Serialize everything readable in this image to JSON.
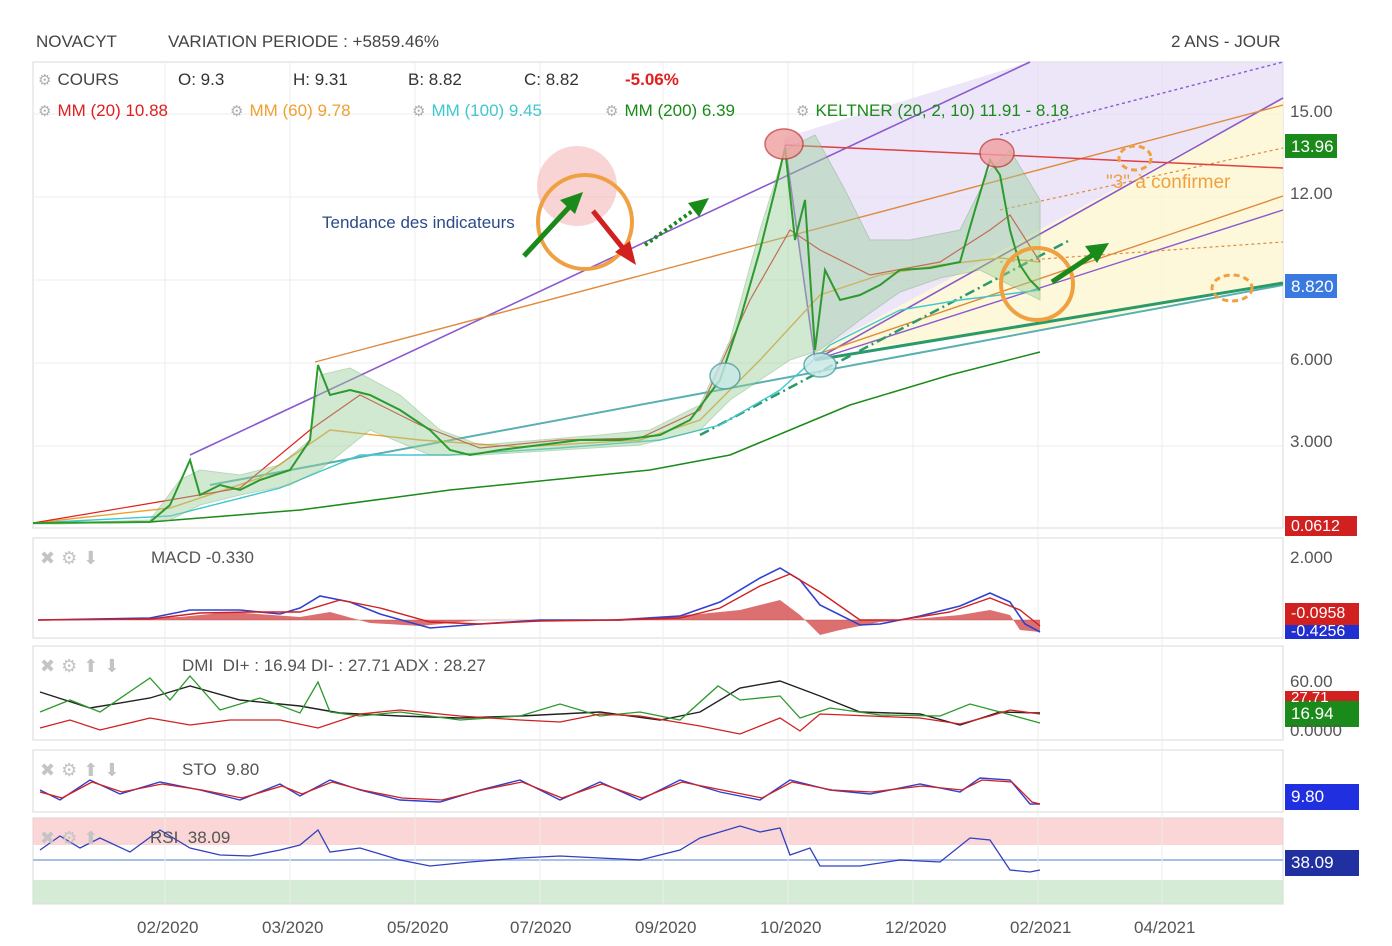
{
  "header": {
    "ticker": "NOVACYT",
    "variation": "VARIATION PERIODE : +5859.46%",
    "period": "2 ANS - JOUR"
  },
  "quote": {
    "label": "COURS",
    "open": "O: 9.3",
    "high": "H: 9.31",
    "low": "B: 8.82",
    "close": "C: 8.82",
    "change": "-5.06%"
  },
  "moving_averages": [
    {
      "label": "MM (20)",
      "value": "10.88",
      "color": "#e02020"
    },
    {
      "label": "MM (60)",
      "value": "9.78",
      "color": "#f0a030"
    },
    {
      "label": "MM (100)",
      "value": "9.45",
      "color": "#40c8d0"
    },
    {
      "label": "MM (200)",
      "value": "6.39",
      "color": "#1a8a1a"
    },
    {
      "label": "KELTNER (20, 2, 10)",
      "value": "11.91 - 8.18",
      "color": "#1a8a1a"
    }
  ],
  "price_axis": {
    "ticks": [
      "15.00",
      "12.00",
      "6.000",
      "3.000"
    ],
    "tags": [
      {
        "text": "13.96",
        "color": "#1a8a1a"
      },
      {
        "text": "8.820",
        "color": "#3a7ae0"
      },
      {
        "text": "0.0612",
        "color": "#d02020"
      }
    ]
  },
  "annotations": {
    "trend_text": "Tendance des indicateurs",
    "confirm_text": "\"3\" à confirmer"
  },
  "x_axis": {
    "ticks": [
      "02/2020",
      "03/2020",
      "05/2020",
      "07/2020",
      "09/2020",
      "10/2020",
      "12/2020",
      "02/2021",
      "04/2021"
    ]
  },
  "panels": {
    "macd": {
      "title": "MACD",
      "value": "-0.330",
      "ticks": [
        "2.000"
      ],
      "tags": [
        {
          "text": "-0.0958",
          "color": "#d02020"
        },
        {
          "text": "-0.4256",
          "color": "#2030d0"
        }
      ]
    },
    "dmi": {
      "title": "DMI",
      "value": "DI+ : 16.94 DI- : 27.71 ADX : 28.27",
      "ticks": [
        "60.00",
        "0.0000"
      ],
      "tags": [
        {
          "text": "27.71",
          "color": "#d02020"
        },
        {
          "text": "16.94",
          "color": "#1a8a1a"
        }
      ]
    },
    "sto": {
      "title": "STO",
      "value": "9.80",
      "tags": [
        {
          "text": "9.80",
          "color": "#2030e0"
        }
      ]
    },
    "rsi": {
      "title": "RSI",
      "value": "38.09",
      "tags": [
        {
          "text": "38.09",
          "color": "#2030a0"
        }
      ]
    }
  },
  "chart_data": {
    "type": "line",
    "title": "NOVACYT",
    "x_range": [
      "2020-01",
      "2021-04"
    ],
    "ylim": [
      0,
      16.5
    ],
    "series": [
      {
        "name": "COURS",
        "x": [
          "2020-01-01",
          "2020-01-15",
          "2020-02-01",
          "2020-02-10",
          "2020-02-20",
          "2020-03-01",
          "2020-03-10",
          "2020-03-15",
          "2020-04-01",
          "2020-04-15",
          "2020-05-01",
          "2020-05-15",
          "2020-06-01",
          "2020-06-15",
          "2020-07-01",
          "2020-07-15",
          "2020-08-01",
          "2020-08-15",
          "2020-09-01",
          "2020-09-10",
          "2020-09-20",
          "2020-09-28",
          "2020-10-02",
          "2020-10-08",
          "2020-10-15",
          "2020-11-01",
          "2020-11-15",
          "2020-12-01",
          "2020-12-15",
          "2021-01-01",
          "2021-01-10",
          "2021-01-15",
          "2021-01-25",
          "2021-02-01",
          "2021-02-05"
        ],
        "y": [
          0.06,
          0.08,
          1.2,
          1.6,
          1.4,
          2.2,
          4.5,
          5.2,
          4.8,
          3.8,
          2.8,
          2.7,
          3.0,
          3.3,
          3.2,
          3.5,
          3.4,
          3.3,
          3.8,
          5.0,
          7.5,
          10.5,
          13.7,
          10.5,
          8.0,
          8.5,
          8.8,
          9.3,
          9.8,
          10.5,
          13.2,
          11.8,
          9.8,
          9.3,
          8.82
        ]
      }
    ]
  }
}
